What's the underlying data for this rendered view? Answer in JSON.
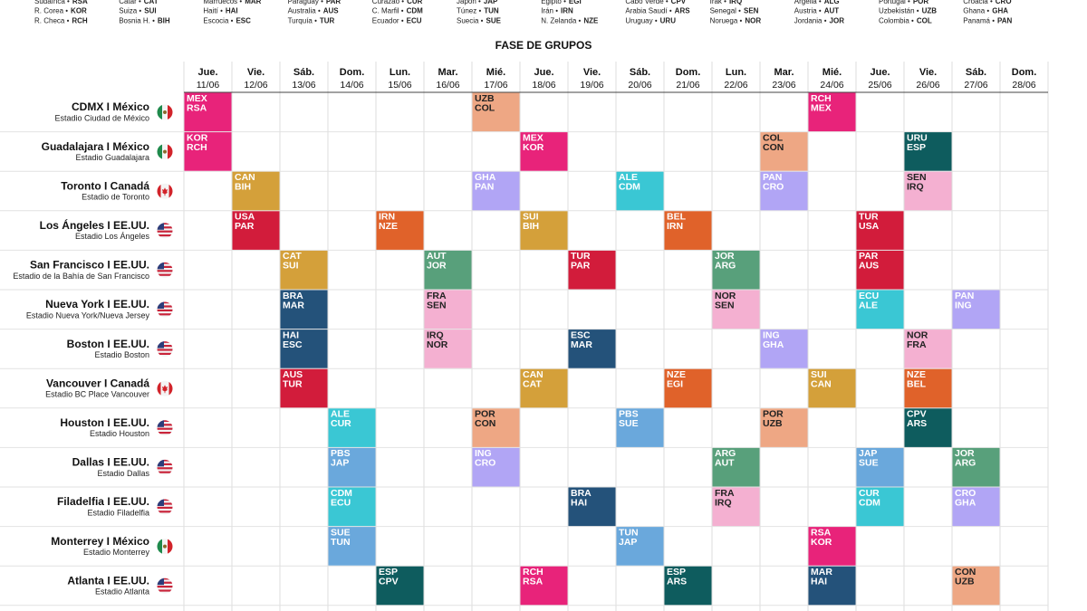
{
  "teams": [
    [
      {
        "name": "Sudáfrica •",
        "code": "RSA"
      },
      {
        "name": "R. Corea •",
        "code": "KOR"
      },
      {
        "name": "R. Checa •",
        "code": "RCH"
      }
    ],
    [
      {
        "name": "Catar •",
        "code": "CAT"
      },
      {
        "name": "Suiza •",
        "code": "SUI"
      },
      {
        "name": "Bosnia H. •",
        "code": "BIH"
      }
    ],
    [
      {
        "name": "Marruecos •",
        "code": "MAR"
      },
      {
        "name": "Haití •",
        "code": "HAI"
      },
      {
        "name": "Escocia •",
        "code": "ESC"
      }
    ],
    [
      {
        "name": "Paraguay •",
        "code": "PAR"
      },
      {
        "name": "Australia •",
        "code": "AUS"
      },
      {
        "name": "Turquía •",
        "code": "TUR"
      }
    ],
    [
      {
        "name": "Curazao •",
        "code": "CUR"
      },
      {
        "name": "C. Marfil •",
        "code": "CDM"
      },
      {
        "name": "Ecuador •",
        "code": "ECU"
      }
    ],
    [
      {
        "name": "Japón •",
        "code": "JAP"
      },
      {
        "name": "Túnez •",
        "code": "TUN"
      },
      {
        "name": "Suecia •",
        "code": "SUE"
      }
    ],
    [
      {
        "name": "Egipto •",
        "code": "EGI"
      },
      {
        "name": "Irán •",
        "code": "IRN"
      },
      {
        "name": "N. Zelanda •",
        "code": "NZE"
      }
    ],
    [
      {
        "name": "Cabo Verde •",
        "code": "CPV"
      },
      {
        "name": "Arabia Saudí •",
        "code": "ARS"
      },
      {
        "name": "Uruguay •",
        "code": "URU"
      }
    ],
    [
      {
        "name": "Irak •",
        "code": "IRQ"
      },
      {
        "name": "Senegal •",
        "code": "SEN"
      },
      {
        "name": "Noruega •",
        "code": "NOR"
      }
    ],
    [
      {
        "name": "Argelia •",
        "code": "ALG"
      },
      {
        "name": "Austria •",
        "code": "AUT"
      },
      {
        "name": "Jordania •",
        "code": "JOR"
      }
    ],
    [
      {
        "name": "Portugal •",
        "code": "POR"
      },
      {
        "name": "Uzbekistán •",
        "code": "UZB"
      },
      {
        "name": "Colombia •",
        "code": "COL"
      }
    ],
    [
      {
        "name": "Croacia •",
        "code": "CRO"
      },
      {
        "name": "Ghana •",
        "code": "GHA"
      },
      {
        "name": "Panamá •",
        "code": "PAN"
      }
    ]
  ],
  "title": "FASE DE GRUPOS",
  "days": [
    {
      "day": "Jue.",
      "date": "11/06"
    },
    {
      "day": "Vie.",
      "date": "12/06"
    },
    {
      "day": "Sáb.",
      "date": "13/06"
    },
    {
      "day": "Dom.",
      "date": "14/06"
    },
    {
      "day": "Lun.",
      "date": "15/06"
    },
    {
      "day": "Mar.",
      "date": "16/06"
    },
    {
      "day": "Mié.",
      "date": "17/06"
    },
    {
      "day": "Jue.",
      "date": "18/06"
    },
    {
      "day": "Vie.",
      "date": "19/06"
    },
    {
      "day": "Sáb.",
      "date": "20/06"
    },
    {
      "day": "Dom.",
      "date": "21/06"
    },
    {
      "day": "Lun.",
      "date": "22/06"
    },
    {
      "day": "Mar.",
      "date": "23/06"
    },
    {
      "day": "Mié.",
      "date": "24/06"
    },
    {
      "day": "Jue.",
      "date": "25/06"
    },
    {
      "day": "Vie.",
      "date": "26/06"
    },
    {
      "day": "Sáb.",
      "date": "27/06"
    },
    {
      "day": "Dom.",
      "date": "28/06"
    }
  ],
  "venues": [
    {
      "city": "CDMX I México",
      "stadium": "Estadio Ciudad de México",
      "flag": "mx",
      "matches": [
        {
          "day": 0,
          "teams": [
            "MEX",
            "RSA"
          ],
          "color": "#e8237a"
        },
        {
          "day": 6,
          "teams": [
            "UZB",
            "COL"
          ],
          "color": "#eea784"
        },
        {
          "day": 13,
          "teams": [
            "RCH",
            "MEX"
          ],
          "color": "#e8237a"
        }
      ]
    },
    {
      "city": "Guadalajara I México",
      "stadium": "Estadio Guadalajara",
      "flag": "mx",
      "matches": [
        {
          "day": 0,
          "teams": [
            "KOR",
            "RCH"
          ],
          "color": "#e8237a"
        },
        {
          "day": 7,
          "teams": [
            "MEX",
            "KOR"
          ],
          "color": "#e8237a"
        },
        {
          "day": 12,
          "teams": [
            "COL",
            "CON"
          ],
          "color": "#eea784"
        },
        {
          "day": 15,
          "teams": [
            "URU",
            "ESP"
          ],
          "color": "#0e5c5e"
        }
      ]
    },
    {
      "city": "Toronto I Canadá",
      "stadium": "Estadio de Toronto",
      "flag": "ca",
      "matches": [
        {
          "day": 1,
          "teams": [
            "CAN",
            "BIH"
          ],
          "color": "#d4a03a"
        },
        {
          "day": 6,
          "teams": [
            "GHA",
            "PAN"
          ],
          "color": "#b1a5f5"
        },
        {
          "day": 9,
          "teams": [
            "ALE",
            "CDM"
          ],
          "color": "#3ac7d4"
        },
        {
          "day": 12,
          "teams": [
            "PAN",
            "CRO"
          ],
          "color": "#b1a5f5"
        },
        {
          "day": 15,
          "teams": [
            "SEN",
            "IRQ"
          ],
          "color": "#f4b0d1"
        }
      ]
    },
    {
      "city": "Los Ángeles I EE.UU.",
      "stadium": "Estadio Los Ángeles",
      "flag": "us",
      "matches": [
        {
          "day": 1,
          "teams": [
            "USA",
            "PAR"
          ],
          "color": "#d21c3b"
        },
        {
          "day": 4,
          "teams": [
            "IRN",
            "NZE"
          ],
          "color": "#e0622a"
        },
        {
          "day": 7,
          "teams": [
            "SUI",
            "BIH"
          ],
          "color": "#d4a03a"
        },
        {
          "day": 10,
          "teams": [
            "BEL",
            "IRN"
          ],
          "color": "#e0622a"
        },
        {
          "day": 14,
          "teams": [
            "TUR",
            "USA"
          ],
          "color": "#d21c3b"
        }
      ]
    },
    {
      "city": "San Francisco I EE.UU.",
      "stadium": "Estadio de la Bahía de San Francisco",
      "flag": "us",
      "matches": [
        {
          "day": 2,
          "teams": [
            "CAT",
            "SUI"
          ],
          "color": "#d4a03a"
        },
        {
          "day": 5,
          "teams": [
            "AUT",
            "JOR"
          ],
          "color": "#58a07b"
        },
        {
          "day": 8,
          "teams": [
            "TUR",
            "PAR"
          ],
          "color": "#d21c3b"
        },
        {
          "day": 11,
          "teams": [
            "JOR",
            "ARG"
          ],
          "color": "#58a07b"
        },
        {
          "day": 14,
          "teams": [
            "PAR",
            "AUS"
          ],
          "color": "#d21c3b"
        }
      ]
    },
    {
      "city": "Nueva York I EE.UU.",
      "stadium": "Estadio Nueva York/Nueva Jersey",
      "flag": "us",
      "matches": [
        {
          "day": 2,
          "teams": [
            "BRA",
            "MAR"
          ],
          "color": "#24527a"
        },
        {
          "day": 5,
          "teams": [
            "FRA",
            "SEN"
          ],
          "color": "#f4b0d1"
        },
        {
          "day": 11,
          "teams": [
            "NOR",
            "SEN"
          ],
          "color": "#f4b0d1"
        },
        {
          "day": 14,
          "teams": [
            "ECU",
            "ALE"
          ],
          "color": "#3ac7d4"
        },
        {
          "day": 16,
          "teams": [
            "PAN",
            "ING"
          ],
          "color": "#b1a5f5"
        }
      ]
    },
    {
      "city": "Boston I EE.UU.",
      "stadium": "Estadio Boston",
      "flag": "us",
      "matches": [
        {
          "day": 2,
          "teams": [
            "HAI",
            "ESC"
          ],
          "color": "#24527a"
        },
        {
          "day": 5,
          "teams": [
            "IRQ",
            "NOR"
          ],
          "color": "#f4b0d1"
        },
        {
          "day": 8,
          "teams": [
            "ESC",
            "MAR"
          ],
          "color": "#24527a"
        },
        {
          "day": 12,
          "teams": [
            "ING",
            "GHA"
          ],
          "color": "#b1a5f5"
        },
        {
          "day": 15,
          "teams": [
            "NOR",
            "FRA"
          ],
          "color": "#f4b0d1"
        }
      ]
    },
    {
      "city": "Vancouver I Canadá",
      "stadium": "Estadio BC Place Vancouver",
      "flag": "ca",
      "matches": [
        {
          "day": 2,
          "teams": [
            "AUS",
            "TUR"
          ],
          "color": "#d21c3b"
        },
        {
          "day": 7,
          "teams": [
            "CAN",
            "CAT"
          ],
          "color": "#d4a03a"
        },
        {
          "day": 10,
          "teams": [
            "NZE",
            "EGI"
          ],
          "color": "#e0622a"
        },
        {
          "day": 13,
          "teams": [
            "SUI",
            "CAN"
          ],
          "color": "#d4a03a"
        },
        {
          "day": 15,
          "teams": [
            "NZE",
            "BEL"
          ],
          "color": "#e0622a"
        }
      ]
    },
    {
      "city": "Houston I EE.UU.",
      "stadium": "Estadio Houston",
      "flag": "us",
      "matches": [
        {
          "day": 3,
          "teams": [
            "ALE",
            "CUR"
          ],
          "color": "#3ac7d4"
        },
        {
          "day": 6,
          "teams": [
            "POR",
            "CON"
          ],
          "color": "#eea784"
        },
        {
          "day": 9,
          "teams": [
            "PBS",
            "SUE"
          ],
          "color": "#6aa8dc"
        },
        {
          "day": 12,
          "teams": [
            "POR",
            "UZB"
          ],
          "color": "#eea784"
        },
        {
          "day": 15,
          "teams": [
            "CPV",
            "ARS"
          ],
          "color": "#0e5c5e"
        }
      ]
    },
    {
      "city": "Dallas I EE.UU.",
      "stadium": "Estadio Dallas",
      "flag": "us",
      "matches": [
        {
          "day": 3,
          "teams": [
            "PBS",
            "JAP"
          ],
          "color": "#6aa8dc"
        },
        {
          "day": 6,
          "teams": [
            "ING",
            "CRO"
          ],
          "color": "#b1a5f5"
        },
        {
          "day": 11,
          "teams": [
            "ARG",
            "AUT"
          ],
          "color": "#58a07b"
        },
        {
          "day": 14,
          "teams": [
            "JAP",
            "SUE"
          ],
          "color": "#6aa8dc"
        },
        {
          "day": 16,
          "teams": [
            "JOR",
            "ARG"
          ],
          "color": "#58a07b"
        }
      ]
    },
    {
      "city": "Filadelfia I EE.UU.",
      "stadium": "Estadio Filadelfia",
      "flag": "us",
      "matches": [
        {
          "day": 3,
          "teams": [
            "CDM",
            "ECU"
          ],
          "color": "#3ac7d4"
        },
        {
          "day": 8,
          "teams": [
            "BRA",
            "HAI"
          ],
          "color": "#24527a"
        },
        {
          "day": 11,
          "teams": [
            "FRA",
            "IRQ"
          ],
          "color": "#f4b0d1"
        },
        {
          "day": 14,
          "teams": [
            "CUR",
            "CDM"
          ],
          "color": "#3ac7d4"
        },
        {
          "day": 16,
          "teams": [
            "CRO",
            "GHA"
          ],
          "color": "#b1a5f5"
        }
      ]
    },
    {
      "city": "Monterrey I México",
      "stadium": "Estadio Monterrey",
      "flag": "mx",
      "matches": [
        {
          "day": 3,
          "teams": [
            "SUE",
            "TUN"
          ],
          "color": "#6aa8dc"
        },
        {
          "day": 9,
          "teams": [
            "TUN",
            "JAP"
          ],
          "color": "#6aa8dc"
        },
        {
          "day": 13,
          "teams": [
            "RSA",
            "KOR"
          ],
          "color": "#e8237a"
        }
      ]
    },
    {
      "city": "Atlanta I EE.UU.",
      "stadium": "Estadio Atlanta",
      "flag": "us",
      "matches": [
        {
          "day": 4,
          "teams": [
            "ESP",
            "CPV"
          ],
          "color": "#0e5c5e"
        },
        {
          "day": 7,
          "teams": [
            "RCH",
            "RSA"
          ],
          "color": "#e8237a"
        },
        {
          "day": 10,
          "teams": [
            "ESP",
            "ARS"
          ],
          "color": "#0e5c5e"
        },
        {
          "day": 13,
          "teams": [
            "MAR",
            "HAI"
          ],
          "color": "#24527a"
        },
        {
          "day": 16,
          "teams": [
            "CON",
            "UZB"
          ],
          "color": "#eea784"
        }
      ]
    }
  ]
}
